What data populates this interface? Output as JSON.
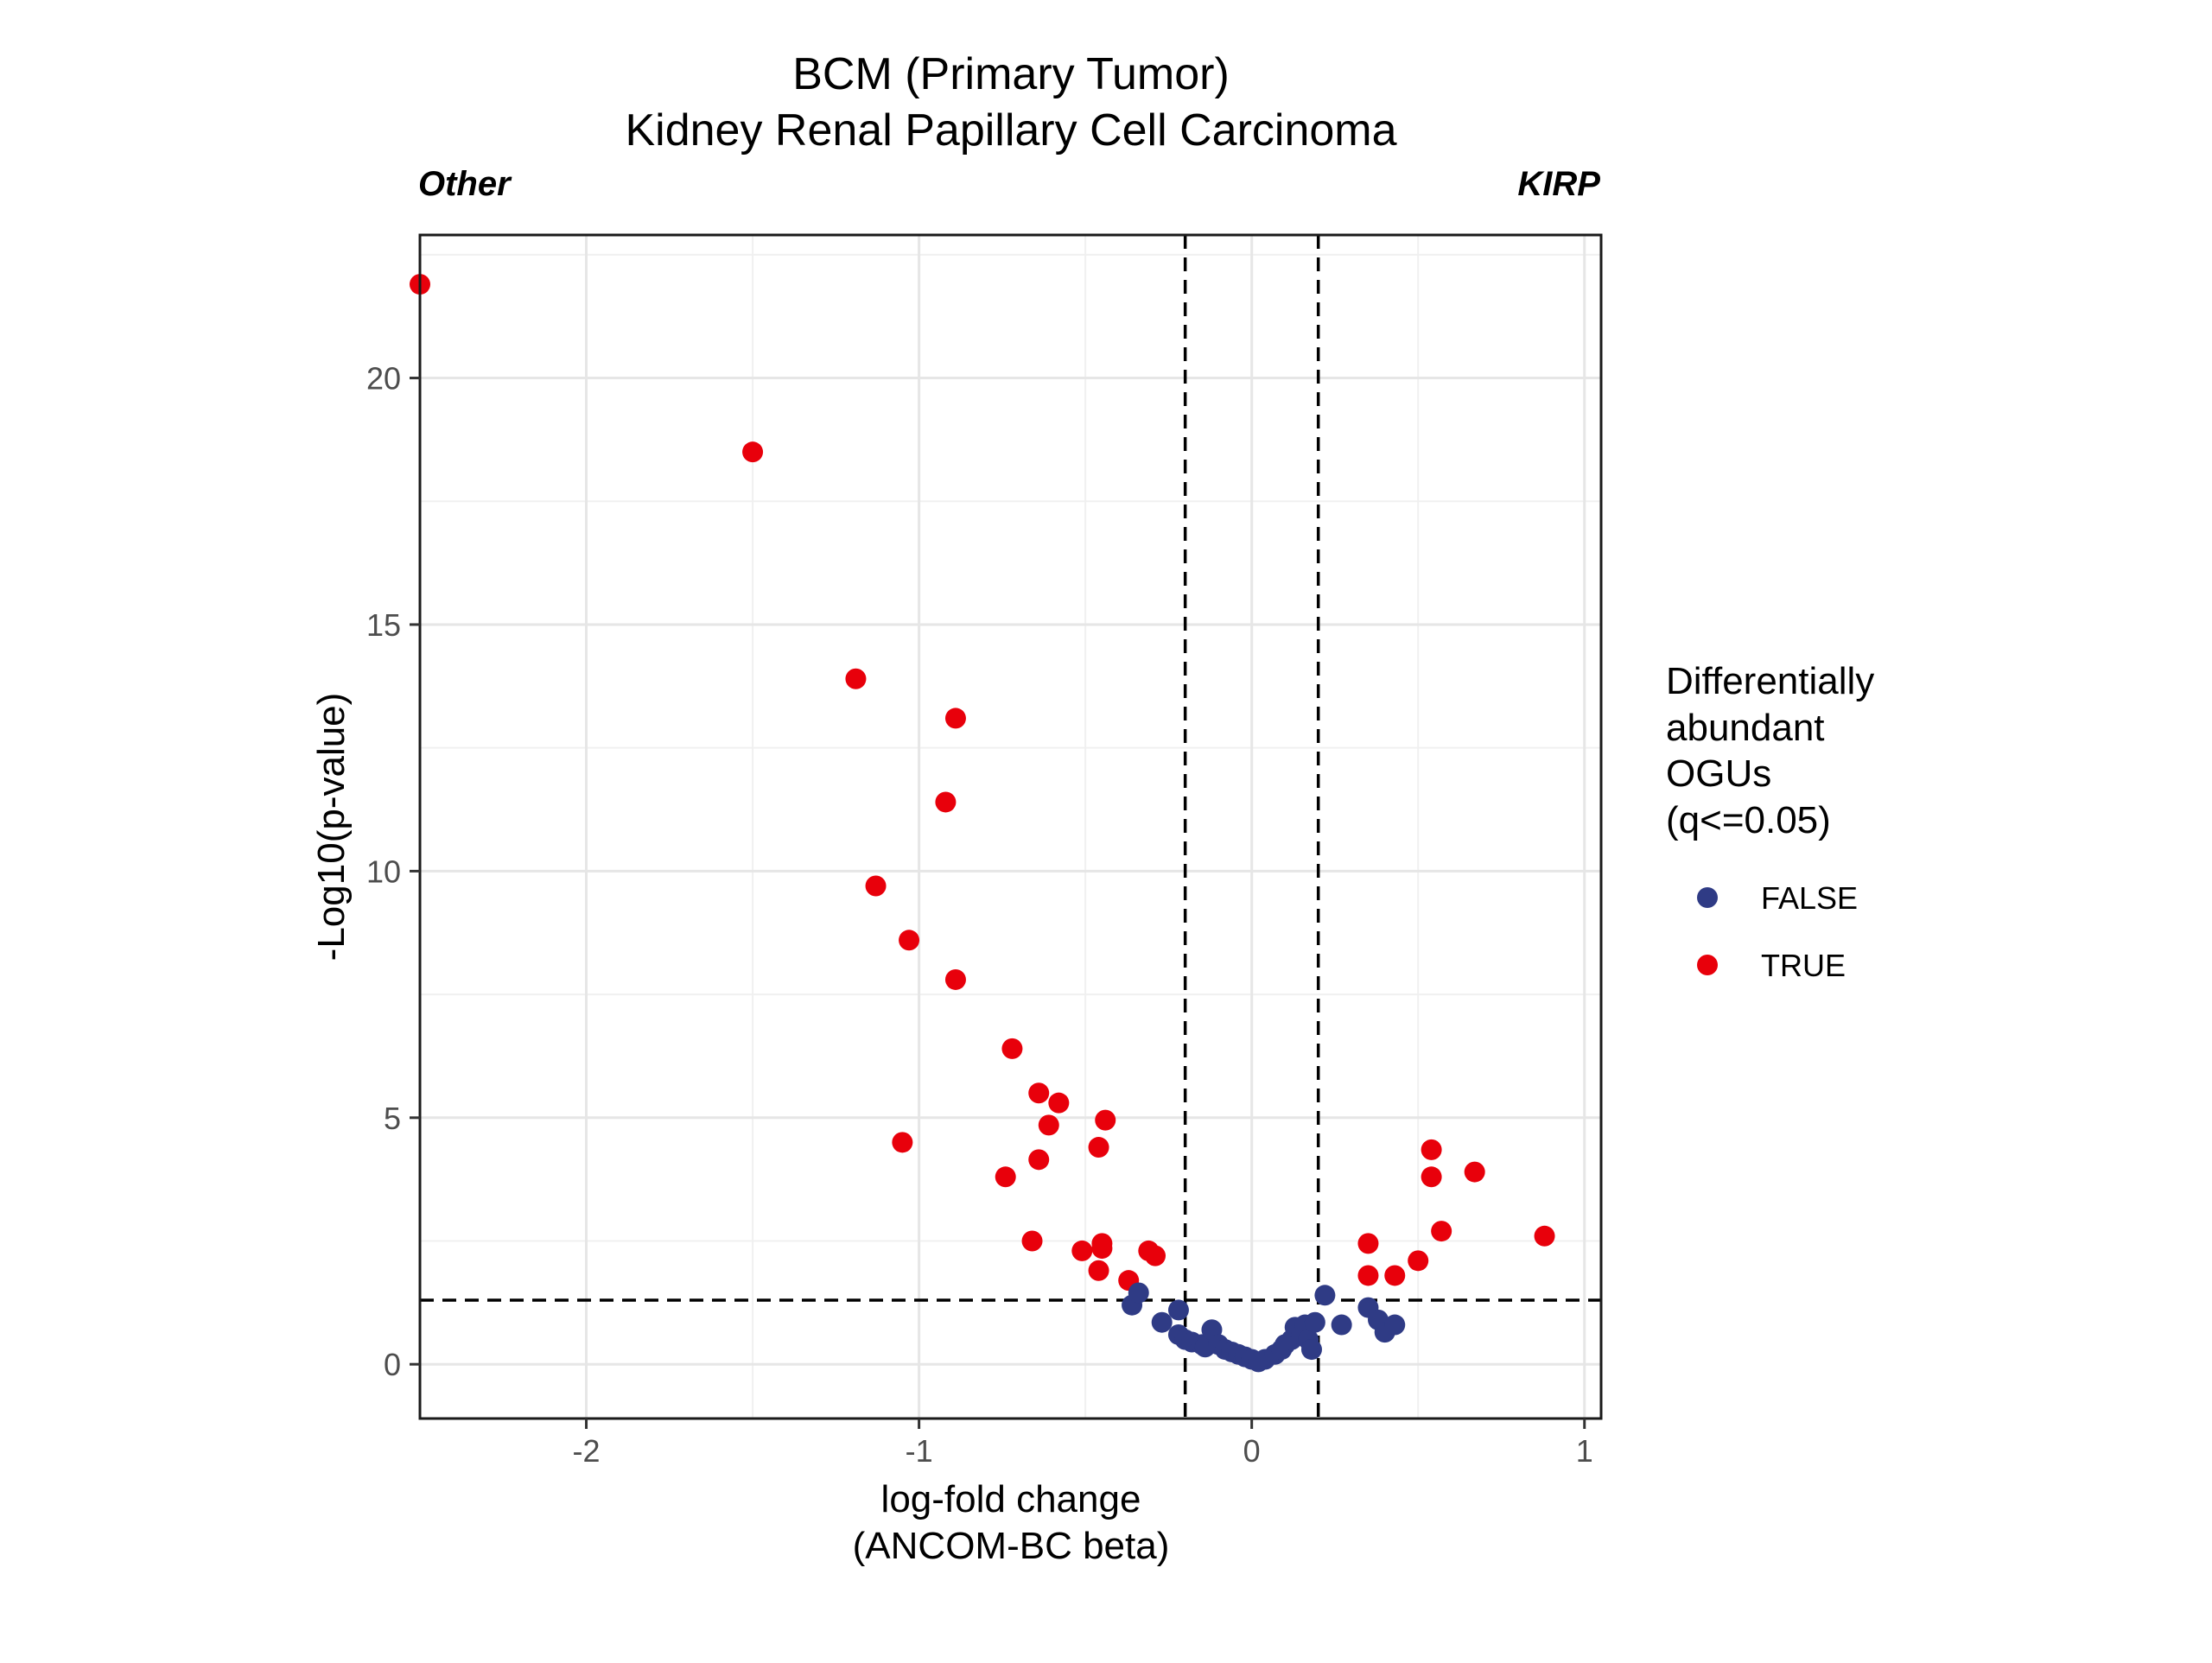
{
  "chart_data": {
    "type": "scatter",
    "title": "BCM (Primary Tumor)",
    "subtitle": "Kidney Renal Papillary Cell Carcinoma",
    "corner_left": "Other",
    "corner_right": "KIRP",
    "xlabel": [
      "log-fold change",
      "(ANCOM-BC beta)"
    ],
    "ylabel": "-Log10(p-value)",
    "xlim": [
      -2.5,
      1.05
    ],
    "ylim": [
      -1.1,
      22.9
    ],
    "xticks": [
      -2,
      -1,
      0,
      1
    ],
    "yticks": [
      0,
      5,
      10,
      15,
      20
    ],
    "xtick_labels": [
      "-2",
      "-1",
      "0",
      "1"
    ],
    "ytick_labels": [
      "0",
      "5",
      "10",
      "15",
      "20"
    ],
    "grid": true,
    "reference_lines": {
      "vertical": [
        -0.2,
        0.2
      ],
      "horizontal": [
        1.3
      ],
      "style": "dashed"
    },
    "legend": {
      "title": [
        "Differentially",
        "abundant",
        "OGUs",
        "(q<=0.05)"
      ],
      "placement": "right",
      "entries": [
        {
          "label": "FALSE",
          "color": "#2f3b85"
        },
        {
          "label": "TRUE",
          "color": "#e8000b"
        }
      ]
    },
    "series": [
      {
        "name": "TRUE",
        "color": "#e8000b",
        "points": [
          [
            -2.5,
            21.9
          ],
          [
            -1.5,
            18.5
          ],
          [
            -1.19,
            13.9
          ],
          [
            -0.89,
            13.1
          ],
          [
            -0.92,
            11.4
          ],
          [
            -1.13,
            9.7
          ],
          [
            -1.03,
            8.6
          ],
          [
            -0.89,
            7.8
          ],
          [
            -0.72,
            6.4
          ],
          [
            -0.64,
            5.5
          ],
          [
            -0.58,
            5.3
          ],
          [
            -0.44,
            4.95
          ],
          [
            -0.61,
            4.85
          ],
          [
            -1.05,
            4.5
          ],
          [
            -0.46,
            4.4
          ],
          [
            -0.64,
            4.15
          ],
          [
            -0.74,
            3.8
          ],
          [
            -0.66,
            2.5
          ],
          [
            -0.45,
            2.45
          ],
          [
            -0.51,
            2.3
          ],
          [
            -0.45,
            2.35
          ],
          [
            -0.31,
            2.3
          ],
          [
            -0.29,
            2.2
          ],
          [
            -0.46,
            1.9
          ],
          [
            -0.37,
            1.7
          ],
          [
            0.35,
            2.45
          ],
          [
            0.35,
            1.8
          ],
          [
            0.43,
            1.8
          ],
          [
            0.5,
            2.1
          ],
          [
            0.54,
            4.35
          ],
          [
            0.54,
            3.8
          ],
          [
            0.57,
            2.7
          ],
          [
            0.67,
            3.9
          ],
          [
            0.88,
            2.6
          ]
        ]
      },
      {
        "name": "FALSE",
        "color": "#2f3b85",
        "points": [
          [
            -0.36,
            1.2
          ],
          [
            -0.34,
            1.45
          ],
          [
            -0.22,
            1.1
          ],
          [
            -0.27,
            0.85
          ],
          [
            -0.22,
            0.6
          ],
          [
            -0.2,
            0.5
          ],
          [
            -0.18,
            0.45
          ],
          [
            -0.15,
            0.4
          ],
          [
            -0.14,
            0.35
          ],
          [
            -0.12,
            0.7
          ],
          [
            -0.1,
            0.4
          ],
          [
            -0.08,
            0.3
          ],
          [
            -0.06,
            0.25
          ],
          [
            -0.04,
            0.2
          ],
          [
            -0.02,
            0.15
          ],
          [
            0.0,
            0.1
          ],
          [
            0.02,
            0.05
          ],
          [
            0.04,
            0.1
          ],
          [
            0.07,
            0.2
          ],
          [
            0.09,
            0.3
          ],
          [
            0.1,
            0.4
          ],
          [
            0.12,
            0.5
          ],
          [
            0.13,
            0.75
          ],
          [
            0.15,
            0.6
          ],
          [
            0.16,
            0.8
          ],
          [
            0.17,
            0.5
          ],
          [
            0.18,
            0.3
          ],
          [
            0.19,
            0.85
          ],
          [
            0.22,
            1.4
          ],
          [
            0.27,
            0.8
          ],
          [
            0.35,
            1.15
          ],
          [
            0.38,
            0.9
          ],
          [
            0.4,
            0.65
          ],
          [
            0.43,
            0.8
          ]
        ]
      }
    ]
  }
}
